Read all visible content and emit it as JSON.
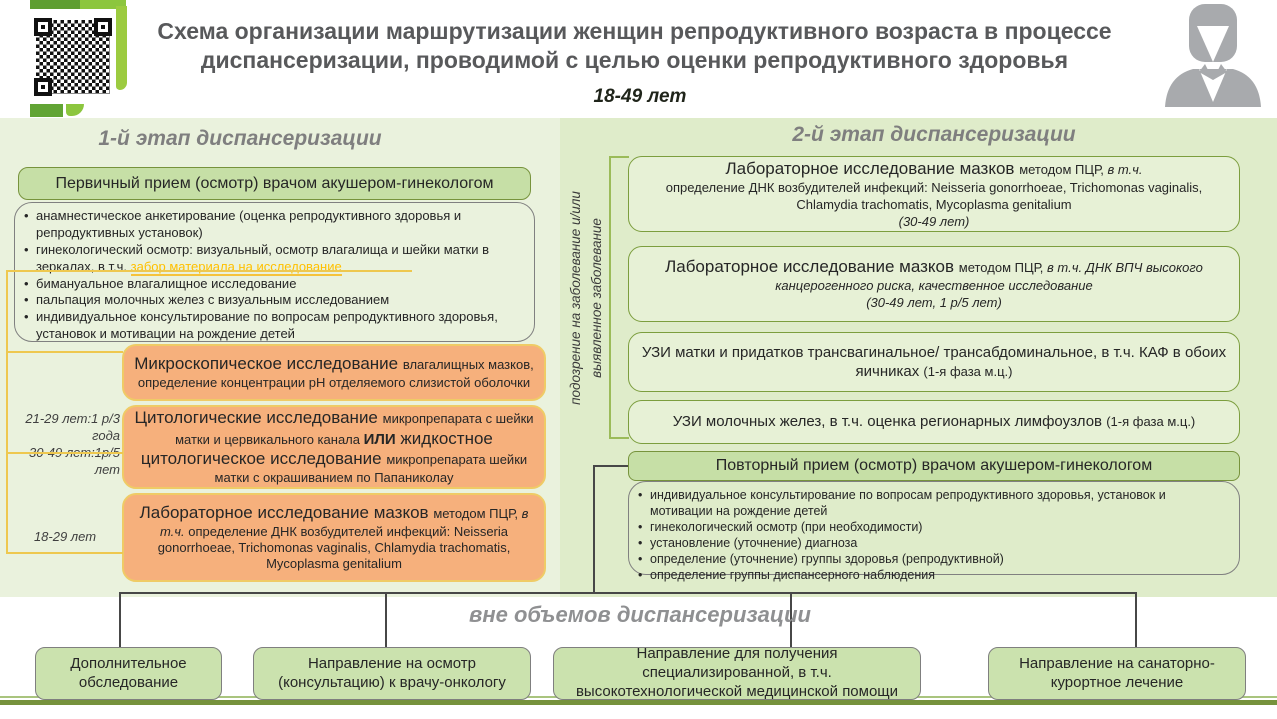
{
  "header": {
    "title": "Схема организации маршрутизации женщин репродуктивного возраста в процессе диспансеризации, проводимой с целью оценки репродуктивного здоровья",
    "age_range": "18-49 лет"
  },
  "stage1": {
    "heading": "1-й этап диспансеризации",
    "primary_box": "Первичный прием (осмотр) врачом акушером-гинекологом",
    "bullets": [
      [
        {
          "t": "анамнестическое  анкетирование  (оценка  репродуктивного  здоровья  и репродуктивных  установок)"
        }
      ],
      [
        {
          "t": "гинекологический  осмотр:  визуальный,  осмотр  влагалища  и  шейки  матки  в зеркалах,  в т.ч. "
        },
        {
          "t": "забор материала на исследование",
          "c": "hl"
        }
      ],
      [
        {
          "t": "бимануальное  влагалищное  исследование"
        }
      ],
      [
        {
          "t": "пальпация  молочных  желез  с визуальным  исследованием"
        }
      ],
      [
        {
          "t": "индивидуальное  консультирование  по вопросам  репродуктивного здоровья,  установок и мотивации  на  рождение  детей"
        }
      ]
    ],
    "orange_boxes": [
      [
        {
          "t": "Микроскопическое исследование ",
          "c": "lg"
        },
        {
          "t": "влагалищных  мазков, определение  концентрации  рН  отделяемого  слизистой оболочки",
          "c": "sm"
        }
      ],
      [
        {
          "t": "Цитологические  исследование ",
          "c": "lg"
        },
        {
          "t": "микропрепарата  с шейки матки  и  цервикального  канала ",
          "c": "sm"
        },
        {
          "t": "ИЛИ",
          "c": "b md"
        },
        {
          "t": " жидкостное цитологическое  исследование ",
          "c": "lg"
        },
        {
          "t": "микропрепарата  шейки матки  с окрашиванием  по  Папаниколау",
          "c": "sm"
        }
      ],
      [
        {
          "t": "Лабораторное исследование  мазков ",
          "c": "lg"
        },
        {
          "t": "методом  ПЦР, ",
          "c": "sm"
        },
        {
          "t": "в т.ч.",
          "c": "sm it"
        },
        {
          "t": " определение  ДНК возбудителей  инфекций:  Neisseria gonorrhoeae,  Trichomonas  vaginalis,  Chlamydia trachomatis, Mycoplasma genitalium",
          "c": "sm"
        }
      ]
    ],
    "side_label_1a": "21-29 лет:1 р/3 года",
    "side_label_1b": "30-49 лет:1р/5 лет",
    "side_label_2": "18-29 лет"
  },
  "divider": {
    "vertical_label_line1": "подозрение  на заболевание  и/или",
    "vertical_label_line2": "выявленное  заболевание"
  },
  "stage2": {
    "heading": "2-й этап диспансеризации",
    "boxes": [
      [
        {
          "t": "Лабораторное исследование  мазков ",
          "c": "lg"
        },
        {
          "t": "методом  ПЦР, ",
          "c": "sm"
        },
        {
          "t": "в т.ч.",
          "c": "sm it",
          "br": true
        },
        {
          "t": "определение  ДНК возбудителей  инфекций:  Neisseria gonorrhoeae,  Trichomonas  vaginalis, Chlamydia trachomatis, Mycoplasma genitalium",
          "c": "sm",
          "br": true
        },
        {
          "t": "(30-49  лет)",
          "c": "sm it"
        }
      ],
      [
        {
          "t": "Лабораторное исследование  мазков ",
          "c": "lg"
        },
        {
          "t": "методом  ПЦР, ",
          "c": "sm"
        },
        {
          "t": "в т.ч. ДНК ВПЧ высокого канцерогенного  риска, качественное  исследование",
          "c": "sm it",
          "br": true
        },
        {
          "t": "(30-49  лет,  1 р/5 лет)",
          "c": "sm it"
        }
      ],
      [
        {
          "t": "УЗИ матки и придатков  трансвагинальное/  трансабдоминальное,  в т.ч.  КАФ  в обоих  яичниках  ",
          "c": "md"
        },
        {
          "t": "(1-я фаза м.ц.)",
          "c": "sm"
        }
      ],
      [
        {
          "t": "УЗИ молочных  желез,  в т.ч.  оценка  регионарных  лимфоузлов  ",
          "c": "md"
        },
        {
          "t": "(1-я фаза м.ц.)",
          "c": "sm"
        }
      ]
    ],
    "repeat_box": "Повторный прием (осмотр) врачом акушером-гинекологом",
    "bullets": [
      [
        {
          "t": "индивидуальное  консультирование  по вопросам  репродуктивного  здоровья,  установок и мотивации  на рождение  детей"
        }
      ],
      [
        {
          "t": "гинекологический  осмотр  (при необходимости)"
        }
      ],
      [
        {
          "t": "установление  (уточнение)  диагноза"
        }
      ],
      [
        {
          "t": "определение  (уточнение)  группы  здоровья  (репродуктивной)"
        }
      ],
      [
        {
          "t": "определение  группы  диспансерного  наблюдения"
        }
      ]
    ]
  },
  "outside": {
    "heading": "вне объемов диспансеризации",
    "boxes": [
      "Дополнительное обследование",
      "Направление  на осмотр (консультацию)  к врачу-онкологу",
      "Направление  для получения  специализированной, в т.ч.  высокотехнологической  медицинской  помощи",
      "Направление  на санаторно-курортное лечение"
    ]
  },
  "colors": {
    "panel_left": "#EAF2DD",
    "panel_right": "#DFECCA",
    "green_box_fill": "#C6DFA6",
    "green_box_border": "#77933C",
    "light_green_box_fill": "#E7F1D6",
    "orange_box_fill": "#F6B07C",
    "orange_box_border": "#EFCB66",
    "yellow_connector": "#EEC84F",
    "highlight_text": "#FFC000",
    "footer_bar": "#76923C"
  }
}
